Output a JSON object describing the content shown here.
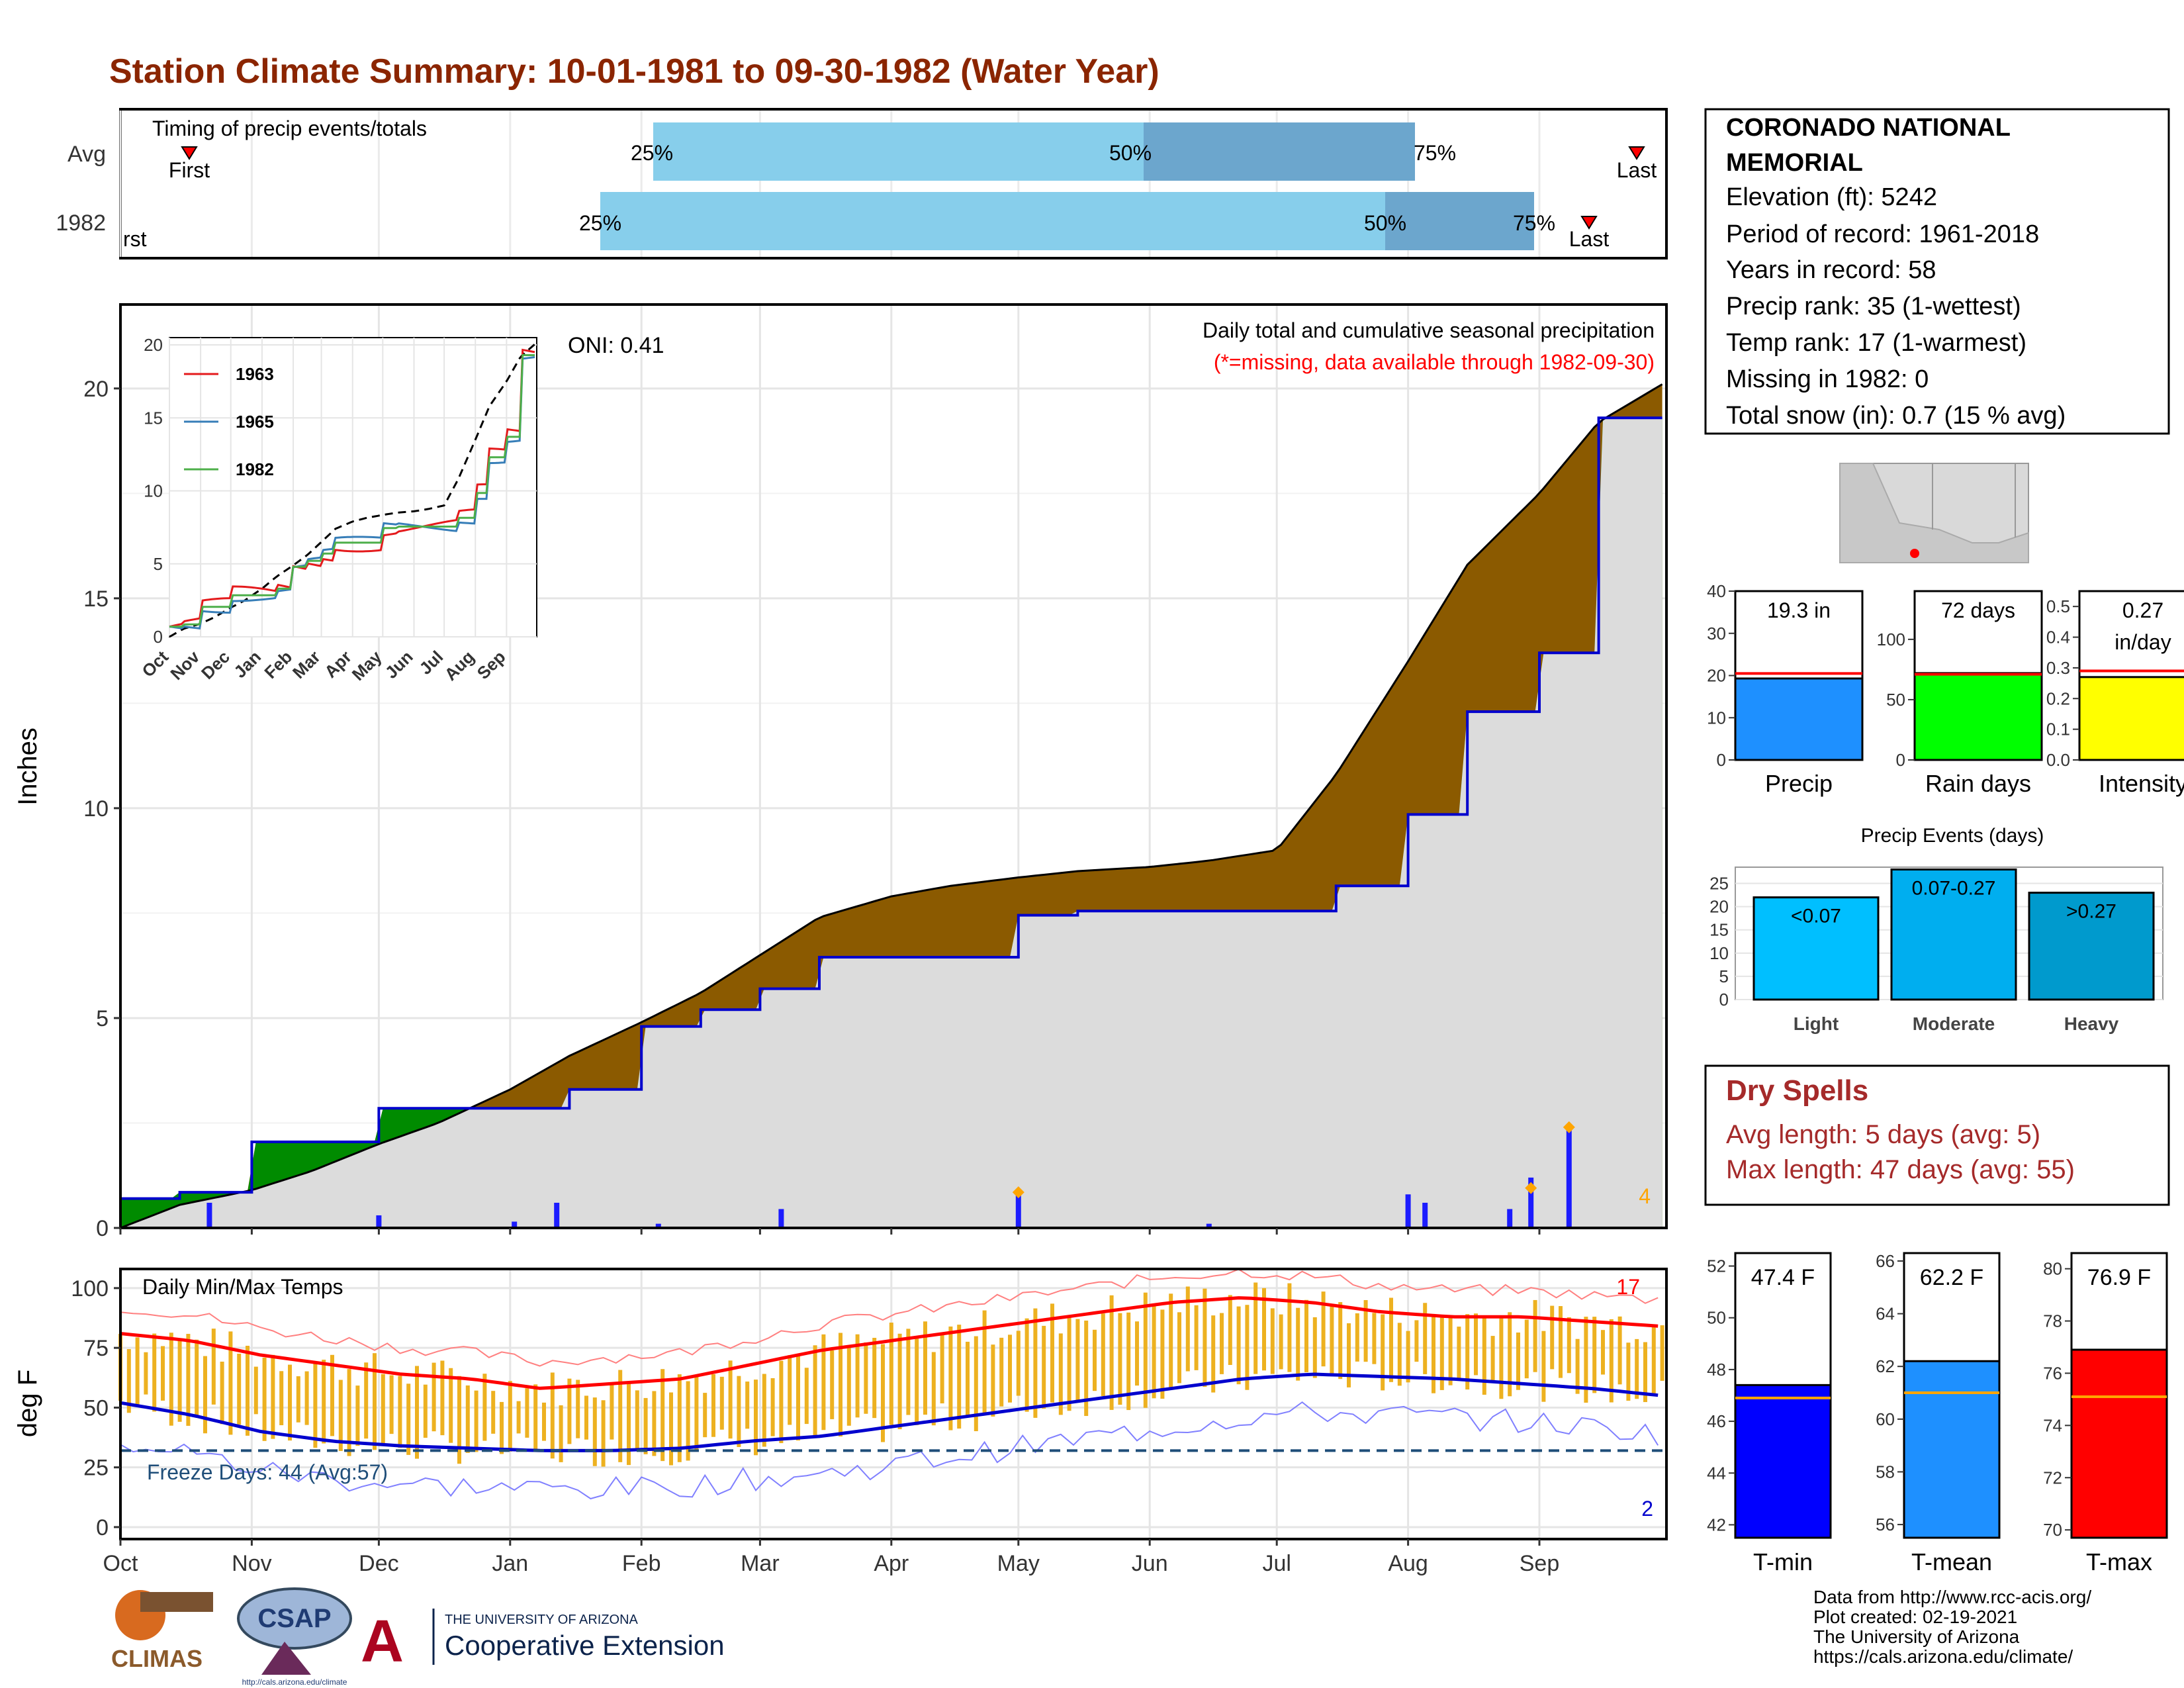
{
  "title": "Station Climate Summary: 10-01-1981 to 09-30-1982 (Water Year)",
  "colors": {
    "title": "#8B2500",
    "cum_avg": "#8B5A00",
    "cum_above": "#008B00",
    "cum_fill": "#DCDCDC",
    "precip_bar": "#1C1CFF",
    "temp_bar": "#EDB120",
    "tmax": "#FF0000",
    "tmin": "#0000CD"
  },
  "timing": {
    "title": "Timing of precip events/totals",
    "rows": [
      "Avg",
      "1982"
    ],
    "labels": {
      "first": "First",
      "last": "Last",
      "first_cropped": "rst",
      "p25": "25%",
      "p50": "50%",
      "p75": "75%"
    }
  },
  "precip_panel": {
    "ylabel": "Inches",
    "header": "Daily total and cumulative seasonal precipitation",
    "subheader": "(*=missing, data available through 1982-09-30)",
    "oni": "ONI: 0.41",
    "count_label": "4",
    "yticks": [
      "0",
      "5",
      "10",
      "15",
      "20"
    ]
  },
  "inset": {
    "legend": [
      "1963",
      "1965",
      "1982"
    ],
    "yticks": [
      "0",
      "5",
      "10",
      "15",
      "20"
    ],
    "xticks": [
      "Oct",
      "Nov",
      "Dec",
      "Jan",
      "Feb",
      "Mar",
      "Apr",
      "May",
      "Jun",
      "Jul",
      "Aug",
      "Sep"
    ]
  },
  "temp_panel": {
    "ylabel": "deg F",
    "title": "Daily Min/Max Temps",
    "freeze": "Freeze Days: 44 (Avg:57)",
    "hot_count": "17",
    "cold_count": "2",
    "yticks": [
      "0",
      "25",
      "50",
      "75",
      "100"
    ]
  },
  "months": [
    "Oct",
    "Nov",
    "Dec",
    "Jan",
    "Feb",
    "Mar",
    "Apr",
    "May",
    "Jun",
    "Jul",
    "Aug",
    "Sep"
  ],
  "station": {
    "name_line1": "CORONADO NATIONAL",
    "name_line2": "MEMORIAL",
    "elevation": "Elevation (ft): 5242",
    "period": "Period of record: 1961-2018",
    "years": "Years in record: 58",
    "precip_rank": "Precip rank: 35 (1-wettest)",
    "temp_rank": "Temp rank: 17 (1-warmest)",
    "missing": "Missing in 1982: 0",
    "snow": "Total snow (in): 0.7 (15 % avg)"
  },
  "summary_bars": [
    {
      "label": "Precip",
      "value_text": "19.3 in",
      "value": 19.3,
      "avg": 20.5,
      "ymax": 40,
      "ticks": [
        "0",
        "10",
        "20",
        "30",
        "40"
      ],
      "color": "#1E90FF"
    },
    {
      "label": "Rain days",
      "value_text": "72 days",
      "value": 72,
      "avg": 71,
      "ymax": 140,
      "ticks": [
        "0",
        "50",
        "100"
      ],
      "color": "#00FF00"
    },
    {
      "label": "Intensity",
      "value_text": "0.27",
      "value_text2": "in/day",
      "value": 0.27,
      "avg": 0.29,
      "ymax": 0.55,
      "ticks": [
        "0.0",
        "0.1",
        "0.2",
        "0.3",
        "0.4",
        "0.5"
      ],
      "color": "#FFFF00"
    }
  ],
  "events": {
    "title": "Precip Events (days)",
    "yticks": [
      "0",
      "5",
      "10",
      "15",
      "20",
      "25"
    ],
    "bars": [
      {
        "label": "Light",
        "range": "<0.07",
        "value": 22,
        "color": "#00BFFF"
      },
      {
        "label": "Moderate",
        "range": "0.07-0.27",
        "value": 28,
        "color": "#00AEEF"
      },
      {
        "label": "Heavy",
        "range": ">0.27",
        "value": 23,
        "color": "#009ACD"
      }
    ]
  },
  "dry_spells": {
    "title": "Dry Spells",
    "avg": "Avg length: 5 days (avg: 5)",
    "max": "Max length: 47 days (avg: 55)"
  },
  "temp_bars": [
    {
      "label": "T-min",
      "value_text": "47.4 F",
      "value": 47.4,
      "avg": 46.9,
      "ymin": 41.5,
      "ymax": 52.5,
      "ticks": [
        "42",
        "44",
        "46",
        "48",
        "50",
        "52"
      ],
      "color": "#0000FF"
    },
    {
      "label": "T-mean",
      "value_text": "62.2 F",
      "value": 62.2,
      "avg": 61.0,
      "ymin": 55.5,
      "ymax": 66.3,
      "ticks": [
        "56",
        "58",
        "60",
        "62",
        "64",
        "66"
      ],
      "color": "#1E90FF"
    },
    {
      "label": "T-max",
      "value_text": "76.9 F",
      "value": 76.9,
      "avg": 75.1,
      "ymin": 69.7,
      "ymax": 80.6,
      "ticks": [
        "70",
        "72",
        "74",
        "76",
        "78",
        "80"
      ],
      "color": "#FF0000"
    }
  ],
  "footer": {
    "line1": "Data from http://www.rcc-acis.org/",
    "line2": "Plot created: 02-19-2021",
    "line3": "The University of Arizona",
    "line4": "https://cals.arizona.edu/climate/"
  },
  "logos": {
    "climas": "CLIMAS",
    "csap": "CSAP",
    "csap_url": "http://cals.arizona.edu/climate",
    "ua_small": "THE UNIVERSITY OF ARIZONA",
    "ua_big": "Cooperative Extension"
  },
  "chart_data": {
    "type": "area",
    "title": "Daily total and cumulative seasonal precipitation",
    "ylabel": "Inches",
    "ylim": [
      0,
      22
    ],
    "x": [
      "10-01",
      "10-15",
      "11-01",
      "11-15",
      "12-01",
      "12-15",
      "01-01",
      "01-15",
      "02-01",
      "02-15",
      "03-01",
      "03-15",
      "04-01",
      "04-15",
      "05-01",
      "05-15",
      "06-01",
      "06-15",
      "07-01",
      "07-15",
      "08-01",
      "08-15",
      "09-01",
      "09-15",
      "09-30"
    ],
    "series": [
      {
        "name": "Avg",
        "values": [
          0.0,
          0.55,
          0.9,
          1.35,
          2.0,
          2.5,
          3.3,
          4.1,
          4.9,
          5.6,
          6.5,
          7.4,
          7.9,
          8.15,
          8.35,
          8.5,
          8.6,
          8.75,
          9.0,
          10.8,
          13.5,
          15.8,
          17.5,
          19.2,
          20.1
        ]
      },
      {
        "name": "1982",
        "values": [
          0.7,
          0.85,
          2.05,
          2.05,
          2.85,
          2.85,
          2.85,
          3.3,
          4.8,
          5.2,
          5.7,
          6.45,
          6.45,
          6.45,
          7.45,
          7.55,
          7.55,
          7.55,
          7.55,
          8.15,
          9.85,
          12.3,
          13.7,
          19.3,
          19.3
        ]
      }
    ],
    "daily_precip": [
      {
        "date": "10-22",
        "value": 0.6
      },
      {
        "date": "12-01",
        "value": 0.3
      },
      {
        "date": "01-02",
        "value": 0.15
      },
      {
        "date": "01-12",
        "value": 0.6
      },
      {
        "date": "02-05",
        "value": 0.1
      },
      {
        "date": "03-06",
        "value": 0.45
      },
      {
        "date": "05-01",
        "value": 0.85
      },
      {
        "date": "06-15",
        "value": 0.1
      },
      {
        "date": "08-01",
        "value": 0.8
      },
      {
        "date": "08-05",
        "value": 0.6
      },
      {
        "date": "08-25",
        "value": 0.45
      },
      {
        "date": "08-30",
        "value": 1.2
      },
      {
        "date": "09-08",
        "value": 2.4
      }
    ],
    "temps": {
      "ylim": [
        -5,
        108
      ],
      "tmax_avg": [
        81,
        78,
        72,
        68,
        64,
        62,
        58,
        60,
        62,
        68,
        74,
        78,
        82,
        86,
        90,
        94,
        96,
        94,
        90,
        88,
        88,
        86,
        84
      ],
      "tmin_avg": [
        52,
        47,
        40,
        36,
        34,
        33,
        32,
        32,
        33,
        36,
        38,
        42,
        46,
        50,
        54,
        58,
        62,
        64,
        63,
        62,
        60,
        58,
        55
      ]
    }
  }
}
